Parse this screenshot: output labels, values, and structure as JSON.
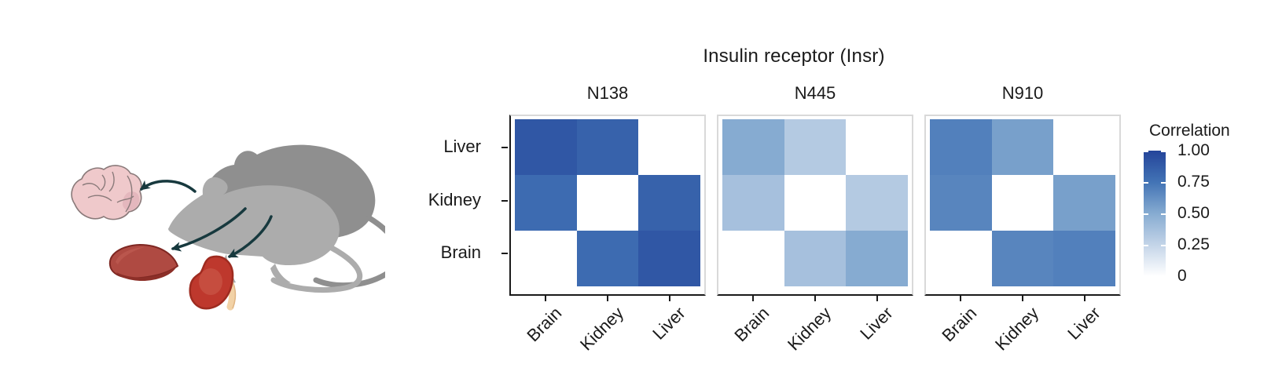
{
  "illustration": {
    "description": "Two mouse silhouettes with arrows pointing to three dissected organs",
    "organs": [
      "Brain",
      "Liver",
      "Kidney"
    ],
    "colors": {
      "mouse_front": "#ACACAC",
      "mouse_back": "#8F8F8F",
      "brain_fill": "#EFC9CB",
      "brain_shade": "#E4B7BD",
      "brain_outline": "#8A7A7A",
      "liver_fill": "#AF4A42",
      "liver_dark_lobe": "#8C2F28",
      "liver_outline": "#7E2722",
      "kidney_fill": "#BE382D",
      "kidney_highlight": "#C95747",
      "kidney_outline": "#9E2B20",
      "ureter_fill": "#F2D2A6",
      "ureter_outline": "#E0B584",
      "arrow": "#17393E"
    }
  },
  "chart_data": {
    "type": "heatmap",
    "title": "Insulin receptor (Insr)",
    "row_labels": [
      "Liver",
      "Kidney",
      "Brain"
    ],
    "col_labels": [
      "Brain",
      "Kidney",
      "Liver"
    ],
    "diagonal_masked": true,
    "masked_color": "#FFFFFF",
    "panels": [
      {
        "name": "N138",
        "values": [
          [
            0.9,
            0.84,
            null
          ],
          [
            0.79,
            null,
            0.84
          ],
          [
            null,
            0.79,
            0.9
          ]
        ]
      },
      {
        "name": "N445",
        "values": [
          [
            0.5,
            0.31,
            null
          ],
          [
            0.37,
            null,
            0.31
          ],
          [
            null,
            0.37,
            0.5
          ]
        ]
      },
      {
        "name": "N910",
        "values": [
          [
            0.69,
            0.55,
            null
          ],
          [
            0.67,
            null,
            0.55
          ],
          [
            null,
            0.67,
            0.69
          ]
        ]
      }
    ],
    "colorbar": {
      "title": "Correlation",
      "ticks": [
        "1.00",
        "0.75",
        "0.50",
        "0.25",
        "0"
      ],
      "range": [
        0,
        1
      ],
      "stops": [
        {
          "value": 0.0,
          "color": "#FFFFFF"
        },
        {
          "value": 0.25,
          "color": "#C3D4E8"
        },
        {
          "value": 0.5,
          "color": "#86ABD1"
        },
        {
          "value": 0.75,
          "color": "#4273B5"
        },
        {
          "value": 1.0,
          "color": "#24449A"
        }
      ]
    },
    "layout": {
      "grid": false,
      "legend_position": "right",
      "x_tick_rotation": -45
    }
  }
}
